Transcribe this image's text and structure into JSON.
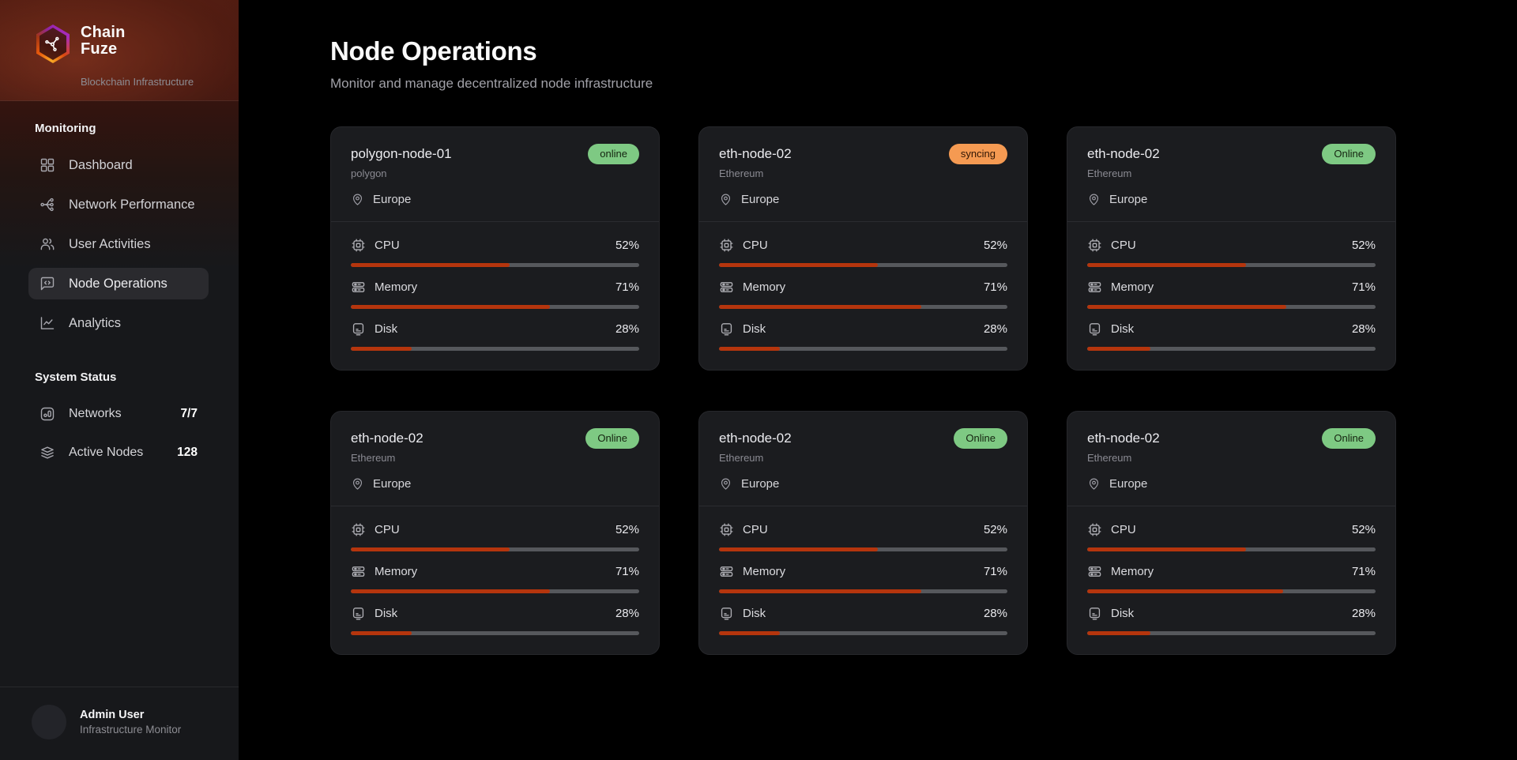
{
  "theme": {
    "main_bg": "#000000",
    "sidebar_bg": "#17181b",
    "card_bg": "#1b1c1f",
    "card_border": "#26272b",
    "divider": "#2b2c30",
    "bar_track": "#56585c",
    "bar_fill": "#b5350d",
    "nav_active_bg": "#2a2a2e",
    "badge_online_bg": "#7ec983",
    "badge_online_text": "#14230f",
    "badge_syncing_bg": "#f59a52",
    "badge_syncing_text": "#2f1503"
  },
  "sidebar": {
    "brand": {
      "name_line1": "Chain",
      "name_line2": "Fuze",
      "tagline": "Blockchain Infrastructure",
      "logo_icon": "hexagon-network-logo-icon"
    },
    "nav": {
      "section_title": "Monitoring",
      "items": [
        {
          "label": "Dashboard",
          "icon": "dashboard-grid-icon",
          "state_class": ""
        },
        {
          "label": "Network Performance",
          "icon": "network-nodes-icon",
          "state_class": ""
        },
        {
          "label": "User Activities",
          "icon": "users-icon",
          "state_class": ""
        },
        {
          "label": "Node Operations",
          "icon": "code-bubble-icon",
          "state_class": "active"
        },
        {
          "label": "Analytics",
          "icon": "line-chart-icon",
          "state_class": ""
        }
      ]
    },
    "status": {
      "section_title": "System Status",
      "items": [
        {
          "label": "Networks",
          "value": "7/7",
          "icon": "bar-chart-box-icon"
        },
        {
          "label": "Active Nodes",
          "value": "128",
          "icon": "layers-icon"
        }
      ]
    },
    "user": {
      "name": "Admin User",
      "role": "Infrastructure Monitor"
    }
  },
  "main": {
    "page_title": "Node Operations",
    "page_subtitle": "Monitor and manage decentralized node infrastructure",
    "nodes": [
      {
        "name": "polygon-node-01",
        "network": "polygon",
        "status_label": "online",
        "status_class": "badge-online",
        "region": "Europe",
        "metrics": [
          {
            "label": "CPU",
            "value": "52%",
            "fill": 55,
            "icon": "cpu-icon"
          },
          {
            "label": "Memory",
            "value": "71%",
            "fill": 69,
            "icon": "memory-icon"
          },
          {
            "label": "Disk",
            "value": "28%",
            "fill": 21,
            "icon": "disk-icon"
          }
        ]
      },
      {
        "name": "eth-node-02",
        "network": "Ethereum",
        "status_label": "syncing",
        "status_class": "badge-syncing",
        "region": "Europe",
        "metrics": [
          {
            "label": "CPU",
            "value": "52%",
            "fill": 55,
            "icon": "cpu-icon"
          },
          {
            "label": "Memory",
            "value": "71%",
            "fill": 70,
            "icon": "memory-icon"
          },
          {
            "label": "Disk",
            "value": "28%",
            "fill": 21,
            "icon": "disk-icon"
          }
        ]
      },
      {
        "name": "eth-node-02",
        "network": "Ethereum",
        "status_label": "Online",
        "status_class": "badge-online",
        "region": "Europe",
        "metrics": [
          {
            "label": "CPU",
            "value": "52%",
            "fill": 55,
            "icon": "cpu-icon"
          },
          {
            "label": "Memory",
            "value": "71%",
            "fill": 69,
            "icon": "memory-icon"
          },
          {
            "label": "Disk",
            "value": "28%",
            "fill": 22,
            "icon": "disk-icon"
          }
        ]
      },
      {
        "name": "eth-node-02",
        "network": "Ethereum",
        "status_label": "Online",
        "status_class": "badge-online",
        "region": "Europe",
        "metrics": [
          {
            "label": "CPU",
            "value": "52%",
            "fill": 55,
            "icon": "cpu-icon"
          },
          {
            "label": "Memory",
            "value": "71%",
            "fill": 69,
            "icon": "memory-icon"
          },
          {
            "label": "Disk",
            "value": "28%",
            "fill": 21,
            "icon": "disk-icon"
          }
        ]
      },
      {
        "name": "eth-node-02",
        "network": "Ethereum",
        "status_label": "Online",
        "status_class": "badge-online",
        "region": "Europe",
        "metrics": [
          {
            "label": "CPU",
            "value": "52%",
            "fill": 55,
            "icon": "cpu-icon"
          },
          {
            "label": "Memory",
            "value": "71%",
            "fill": 70,
            "icon": "memory-icon"
          },
          {
            "label": "Disk",
            "value": "28%",
            "fill": 21,
            "icon": "disk-icon"
          }
        ]
      },
      {
        "name": "eth-node-02",
        "network": "Ethereum",
        "status_label": "Online",
        "status_class": "badge-online",
        "region": "Europe",
        "metrics": [
          {
            "label": "CPU",
            "value": "52%",
            "fill": 55,
            "icon": "cpu-icon"
          },
          {
            "label": "Memory",
            "value": "71%",
            "fill": 68,
            "icon": "memory-icon"
          },
          {
            "label": "Disk",
            "value": "28%",
            "fill": 22,
            "icon": "disk-icon"
          }
        ]
      }
    ]
  }
}
